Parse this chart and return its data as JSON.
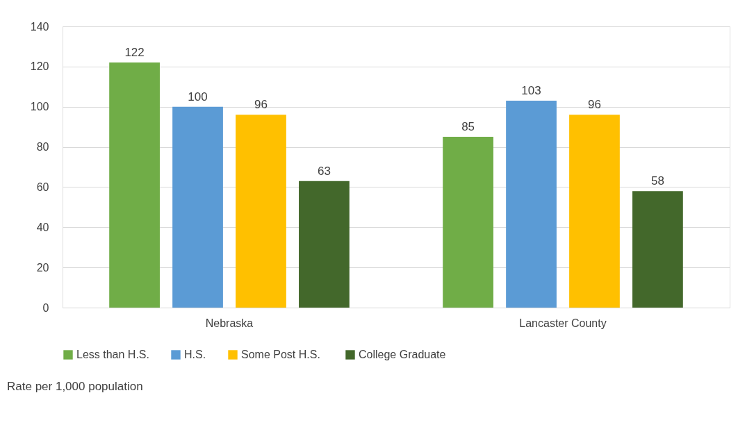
{
  "chart_data": {
    "type": "bar",
    "categories": [
      "Nebraska",
      "Lancaster County"
    ],
    "series": [
      {
        "name": "Less than H.S.",
        "color": "#70ad47",
        "values": [
          122,
          85
        ]
      },
      {
        "name": "H.S.",
        "color": "#5b9bd5",
        "values": [
          100,
          103
        ]
      },
      {
        "name": "Some  Post H.S.",
        "color": "#ffc000",
        "values": [
          96,
          96
        ]
      },
      {
        "name": "College Graduate",
        "color": "#43682b",
        "values": [
          63,
          58
        ]
      }
    ],
    "ylim": [
      0,
      140
    ],
    "yticks": [
      0,
      20,
      40,
      60,
      80,
      100,
      120,
      140
    ],
    "grid": "y",
    "legend": "bottom",
    "data_labels": true,
    "annotations": [
      "Rate per 1,000 population"
    ]
  }
}
